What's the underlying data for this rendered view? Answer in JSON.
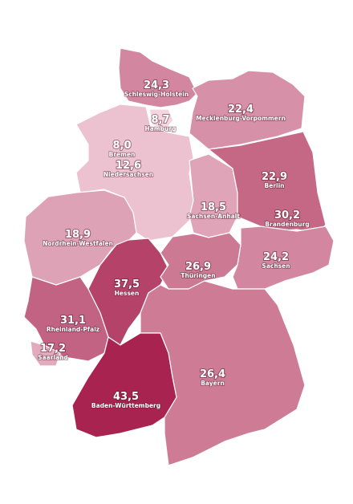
{
  "chart_data": {
    "type": "choropleth",
    "categories": [
      "Schleswig-Holstein",
      "Hamburg",
      "Mecklenburg-Vorpommern",
      "Bremen",
      "Niedersachsen",
      "Berlin",
      "Sachsen-Anhalt",
      "Brandenburg",
      "Nordrhein-Westfalen",
      "Sachsen",
      "Hessen",
      "Thüringen",
      "Rheinland-Pfalz",
      "Saarland",
      "Bayern",
      "Baden-Württemberg"
    ],
    "values": [
      24.3,
      8.7,
      22.4,
      8.0,
      12.6,
      22.9,
      18.5,
      30.2,
      18.9,
      24.2,
      37.5,
      26.9,
      31.1,
      17.2,
      26.4,
      43.5
    ],
    "value_labels": [
      "24,3",
      "8,7",
      "22,4",
      "8,0",
      "12,6",
      "22,9",
      "18,5",
      "30,2",
      "18,9",
      "24,2",
      "37,5",
      "26,9",
      "31,1",
      "17,2",
      "26,4",
      "43,5"
    ],
    "color_scale": [
      "#f6dae3",
      "#a8234f"
    ]
  }
}
